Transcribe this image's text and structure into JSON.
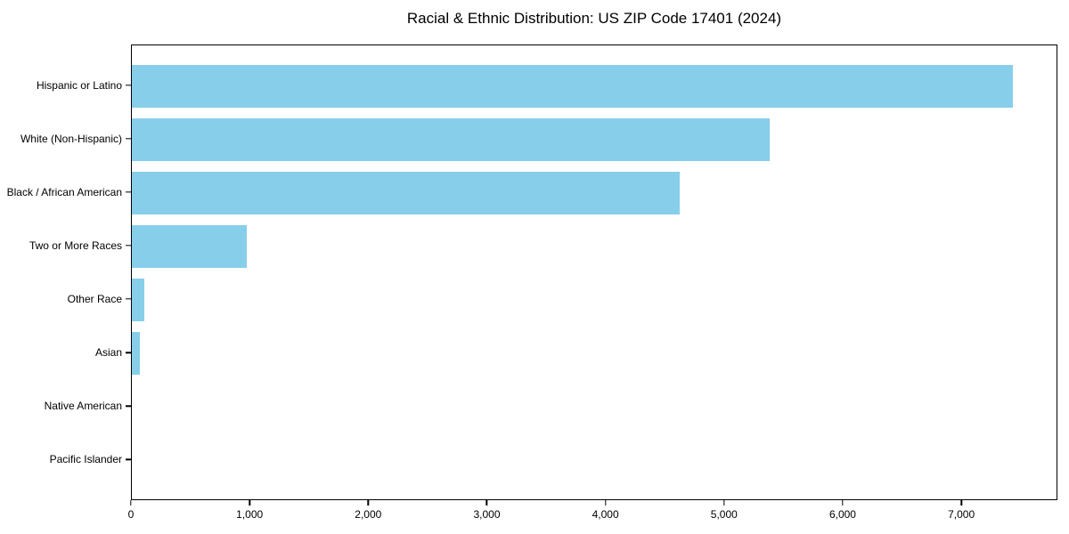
{
  "title": "Racial & Ethnic Distribution: US ZIP Code 17401 (2024)",
  "chart_data": {
    "type": "bar",
    "orientation": "horizontal",
    "title": "Racial & Ethnic Distribution: US ZIP Code 17401 (2024)",
    "categories": [
      "Hispanic or Latino",
      "White (Non-Hispanic)",
      "Black / African American",
      "Two or More Races",
      "Other Race",
      "Asian",
      "Native American",
      "Pacific Islander"
    ],
    "values": [
      7440,
      5390,
      4630,
      970,
      105,
      65,
      0,
      0
    ],
    "xlabel": "",
    "ylabel": "",
    "xlim": [
      0,
      7810
    ],
    "x_ticks": [
      0,
      1000,
      2000,
      3000,
      4000,
      5000,
      6000,
      7000
    ],
    "x_tick_labels": [
      "0",
      "1,000",
      "2,000",
      "3,000",
      "4,000",
      "5,000",
      "6,000",
      "7,000"
    ],
    "bar_color": "#87CEEB",
    "axis_color": "#000000",
    "background_color": "#ffffff",
    "grid": false,
    "legend": null
  }
}
